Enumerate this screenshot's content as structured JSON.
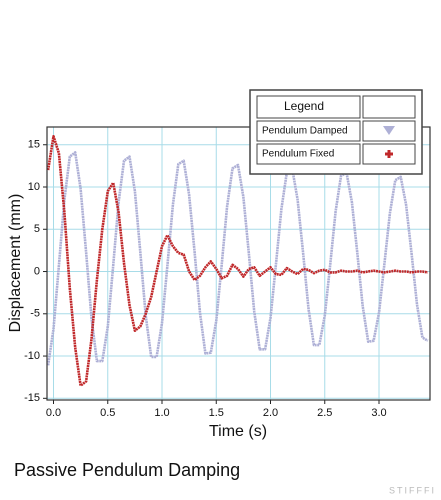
{
  "chart_data": {
    "type": "line",
    "title": "Passive Pendulum Damping",
    "x_label": "Time (s)",
    "y_label": "Displacement (mm)",
    "legend_title": "Legend",
    "watermark": "STIFFFI",
    "grid": true,
    "xlim": [
      -0.06,
      3.47
    ],
    "ylim": [
      -15.2,
      17.1
    ],
    "xticks": [
      {
        "value": 0,
        "label": "0.0"
      },
      {
        "value": 0.5,
        "label": "0.5"
      },
      {
        "value": 1,
        "label": "1.0"
      },
      {
        "value": 1.5,
        "label": "1.5"
      },
      {
        "value": 2,
        "label": "2.0"
      },
      {
        "value": 2.5,
        "label": "2.5"
      },
      {
        "value": 3,
        "label": "3.0"
      }
    ],
    "yticks": [
      -15,
      -10,
      -5,
      0,
      5,
      10,
      15
    ],
    "x": [
      -0.05,
      0,
      0.05,
      0.1,
      0.15,
      0.2,
      0.25,
      0.3,
      0.35,
      0.4,
      0.45,
      0.5,
      0.55,
      0.6,
      0.65,
      0.7,
      0.75,
      0.8,
      0.85,
      0.9,
      0.95,
      1,
      1.05,
      1.1,
      1.15,
      1.2,
      1.25,
      1.3,
      1.35,
      1.4,
      1.45,
      1.5,
      1.55,
      1.6,
      1.65,
      1.7,
      1.75,
      1.8,
      1.85,
      1.9,
      1.95,
      2,
      2.05,
      2.1,
      2.15,
      2.2,
      2.25,
      2.3,
      2.35,
      2.4,
      2.45,
      2.5,
      2.55,
      2.6,
      2.65,
      2.7,
      2.75,
      2.8,
      2.85,
      2.9,
      2.95,
      3,
      3.05,
      3.1,
      3.15,
      3.2,
      3.25,
      3.3,
      3.35,
      3.4,
      3.45
    ],
    "series": [
      {
        "name": "Pendulum Damped",
        "color": "#aeb0d6",
        "values": [
          -11.1,
          -6.8,
          0.7,
          8.5,
          13.6,
          14.1,
          9.8,
          2.3,
          -5.5,
          -10.6,
          -10.6,
          -6.5,
          0.7,
          8.2,
          13.1,
          13.6,
          9.5,
          2.3,
          -5.2,
          -10.1,
          -10.1,
          -6.1,
          0.7,
          7.9,
          12.7,
          13.1,
          9.1,
          2.3,
          -4.9,
          -9.7,
          -9.6,
          -5.8,
          0.8,
          7.7,
          12.2,
          12.6,
          8.8,
          2.2,
          -4.7,
          -9.2,
          -9.2,
          -5.5,
          0.8,
          7.4,
          11.7,
          12.2,
          8.5,
          2.2,
          -4.4,
          -8.7,
          -8.7,
          -5.2,
          0.8,
          7.1,
          11.3,
          11.7,
          8.2,
          2.2,
          -4.1,
          -8.3,
          -8.2,
          -4.9,
          0.9,
          6.9,
          10.8,
          11.2,
          7.9,
          2.1,
          -3.9,
          -7.8,
          -8.2
        ]
      },
      {
        "name": "Pendulum Fixed",
        "color": "#c0282a",
        "values": [
          12,
          16,
          14,
          7,
          -2,
          -9,
          -13.5,
          -13,
          -8,
          -1,
          5,
          9.5,
          10.5,
          7,
          1,
          -4,
          -7,
          -6.5,
          -5,
          -3,
          0,
          3,
          4.3,
          3,
          2.2,
          2,
          0,
          -1,
          -0.5,
          0.5,
          1.2,
          0.3,
          -0.8,
          -0.5,
          0.8,
          0.3,
          -0.6,
          0.3,
          0.5,
          -0.5,
          0,
          0.5,
          -0.3,
          -0.4,
          0.4,
          0,
          -0.3,
          0.3,
          0.2,
          -0.2,
          0.1,
          0.2,
          -0.1,
          -0.1,
          0.1,
          0,
          0,
          0.1,
          -0.1,
          0,
          0.1,
          0,
          -0.1,
          0,
          0.1,
          0,
          0,
          -0.1,
          0,
          0,
          -0.1
        ]
      }
    ]
  }
}
